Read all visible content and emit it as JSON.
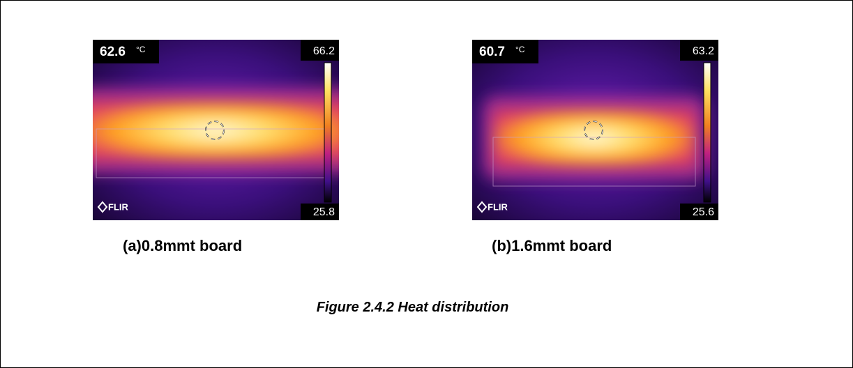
{
  "figures": [
    {
      "temperature": "62.6",
      "unit": "°C",
      "scale_max": "66.2",
      "scale_min": "25.8",
      "brand": "FLIR",
      "caption": "(a)0.8mmt board"
    },
    {
      "temperature": "60.7",
      "unit": "°C",
      "scale_max": "63.2",
      "scale_min": "25.6",
      "brand": "FLIR",
      "caption": "(b)1.6mmt board"
    }
  ],
  "caption": "Figure 2.4.2 Heat distribution"
}
